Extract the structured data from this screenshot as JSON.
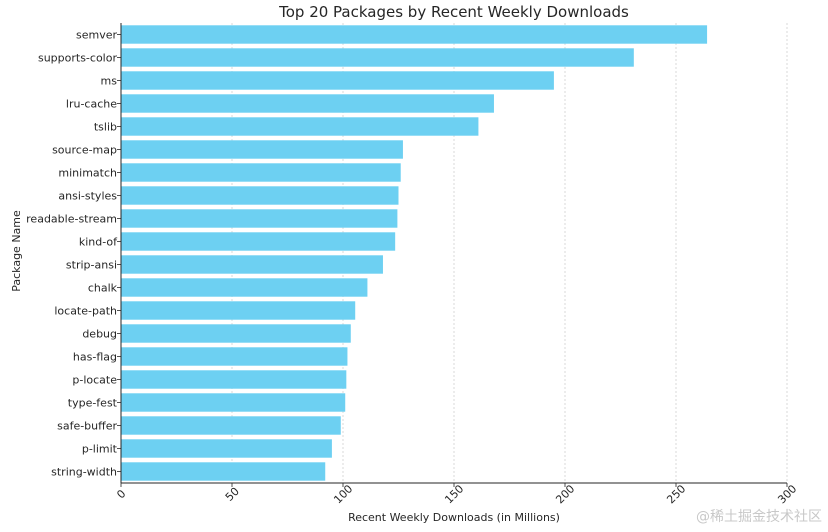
{
  "chart_data": {
    "type": "bar",
    "orientation": "horizontal",
    "title": "Top 20 Packages by Recent Weekly Downloads",
    "xlabel": "Recent Weekly Downloads (in Millions)",
    "ylabel": "Package Name",
    "xlim": [
      0,
      300
    ],
    "xticks": [
      0,
      50,
      100,
      150,
      200,
      250,
      300
    ],
    "grid": "x-dashed",
    "bar_color": "#6dd0f2",
    "categories": [
      "semver",
      "supports-color",
      "ms",
      "lru-cache",
      "tslib",
      "source-map",
      "minimatch",
      "ansi-styles",
      "readable-stream",
      "kind-of",
      "strip-ansi",
      "chalk",
      "locate-path",
      "debug",
      "has-flag",
      "p-locate",
      "type-fest",
      "safe-buffer",
      "p-limit",
      "string-width"
    ],
    "values": [
      264,
      231,
      195,
      168,
      161,
      127,
      126,
      125,
      124.5,
      123.5,
      118,
      111,
      105.5,
      103.5,
      102,
      101.5,
      101,
      99,
      95,
      92
    ]
  },
  "watermark": "@稀土掘金技术社区"
}
